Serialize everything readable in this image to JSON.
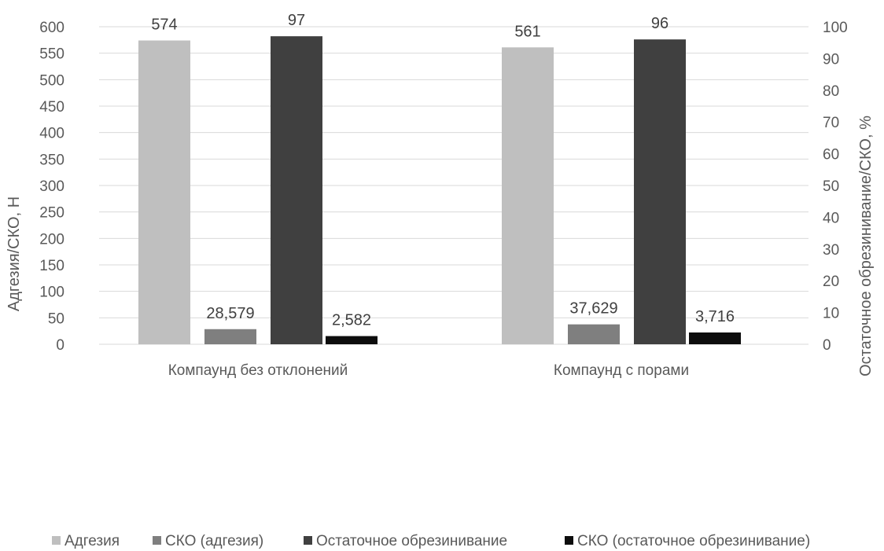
{
  "chart_data": {
    "type": "bar",
    "categories": [
      "Компаунд без отклонений",
      "Компаунд с порами"
    ],
    "series": [
      {
        "name": "Адгезия",
        "axis": "left",
        "color": "#bfbfbf",
        "values": [
          574,
          561
        ],
        "labels": [
          "574",
          "561"
        ]
      },
      {
        "name": "СКО (адгезия)",
        "axis": "left",
        "color": "#7f7f7f",
        "values": [
          28.579,
          37.629
        ],
        "labels": [
          "28,579",
          "37,629"
        ]
      },
      {
        "name": "Остаточное обрезинивание",
        "axis": "right",
        "color": "#404040",
        "values": [
          97,
          96
        ],
        "labels": [
          "97",
          "96"
        ]
      },
      {
        "name": "СКО (остаточное обрезинивание)",
        "axis": "right",
        "color": "#0d0d0d",
        "values": [
          2.582,
          3.716
        ],
        "labels": [
          "2,582",
          "3,716"
        ]
      }
    ],
    "title": "",
    "ylabel": "Адгезия/СКО, Н",
    "y2label": "Остаточное обрезинивание/СКО, %",
    "ylim": [
      0,
      600
    ],
    "y2lim": [
      0,
      100
    ],
    "yticks": [
      0,
      50,
      100,
      150,
      200,
      250,
      300,
      350,
      400,
      450,
      500,
      550,
      600
    ],
    "y2ticks": [
      0,
      10,
      20,
      30,
      40,
      50,
      60,
      70,
      80,
      90,
      100
    ],
    "grid": true,
    "legend_position": "bottom"
  }
}
